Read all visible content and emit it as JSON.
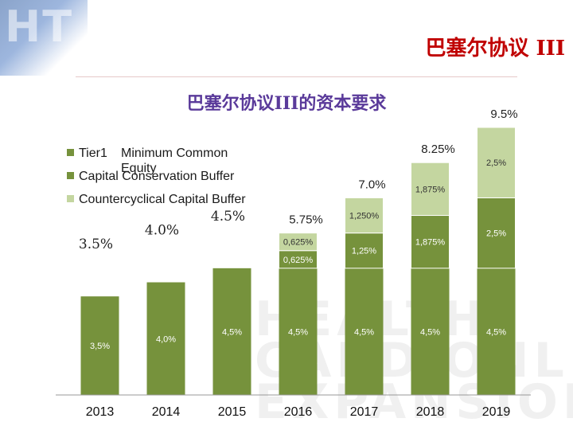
{
  "header": {
    "title": "巴塞尔协议 III"
  },
  "chart_data": {
    "type": "bar",
    "title": "巴塞尔协议III的资本要求",
    "stacked": true,
    "categories": [
      "2013",
      "2014",
      "2015",
      "2016",
      "2017",
      "2018",
      "2019"
    ],
    "series": [
      {
        "name": "Tier1",
        "values": [
          3.5,
          4.0,
          4.5,
          4.5,
          4.5,
          4.5,
          4.5
        ],
        "labels": [
          "3,5%",
          "4,0%",
          "4,5%",
          "4,5%",
          "4,5%",
          "4,5%",
          "4,5%"
        ],
        "color": "#76923c"
      },
      {
        "name": "Capital Conservation Buffer",
        "values": [
          0,
          0,
          0,
          0.625,
          1.25,
          1.875,
          2.5
        ],
        "labels": [
          "",
          "",
          "",
          "0,625%",
          "1,25%",
          "1,875%",
          "2,5%"
        ],
        "color": "#76923c"
      },
      {
        "name": "Countercyclical Capital Buffer",
        "values": [
          0,
          0,
          0,
          0.625,
          1.25,
          1.875,
          2.5
        ],
        "labels": [
          "",
          "",
          "",
          "0,625%",
          "1,250%",
          "1,875%",
          "2,5%"
        ],
        "color": "#c4d6a0"
      }
    ],
    "totals": [
      "3.5%",
      "4.0%",
      "4.5%",
      "5.75%",
      "7.0%",
      "8.25%",
      "9.5%"
    ],
    "ylim": [
      0,
      9.5
    ],
    "legend_position": "top-left",
    "xlabel": "",
    "ylabel": ""
  },
  "legend_note": [
    "Minimum Common",
    "Equity"
  ],
  "watermark": [
    "HEALTH",
    "CARD ONLINE",
    "EXPANSION"
  ]
}
